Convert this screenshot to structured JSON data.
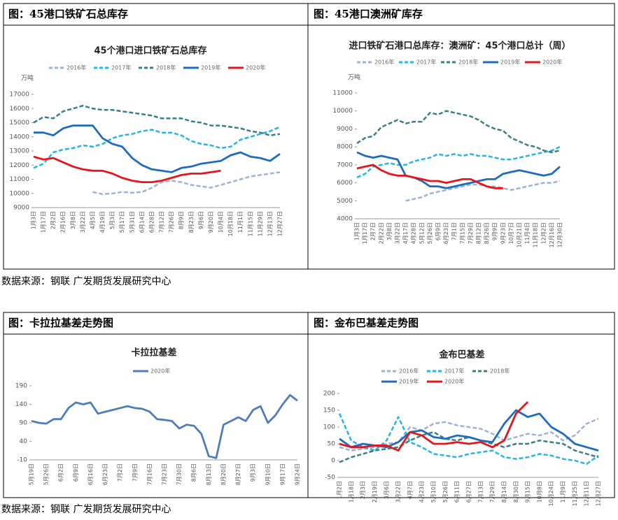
{
  "panels": [
    {
      "heading": "图：45港口铁矿石总库存"
    },
    {
      "heading": "图：45港口澳洲矿库存"
    },
    {
      "heading": "图：卡拉拉基差走势图"
    },
    {
      "heading": "图：金布巴基差走势图"
    }
  ],
  "sources": [
    "数据来源：钢联 广发期货发展研究中心",
    "数据来源：钢联 广发期货发展研究中心"
  ],
  "chart_data": [
    {
      "type": "line",
      "title": "45个港口进口铁矿石总库存",
      "y_label": "万吨",
      "grid": false,
      "categories": [
        "1月3日",
        "1月17日",
        "2月2日",
        "2月16日",
        "3月8日",
        "3月22日",
        "4月5日",
        "4月19日",
        "5月3日",
        "5月17日",
        "5月31日",
        "6月14日",
        "6月28日",
        "7月12日",
        "7月26日",
        "8月9日",
        "8月23日",
        "9月6日",
        "9月20日",
        "10月4日",
        "10月18日",
        "11月1日",
        "11月15日",
        "11月29日",
        "12月13日",
        "12月27日"
      ],
      "ylim": [
        9000,
        17000
      ],
      "yticks": [
        9000,
        10000,
        11000,
        12000,
        13000,
        14000,
        15000,
        16000,
        17000
      ],
      "series": [
        {
          "name": "2016年",
          "color": "#9db3d6",
          "dashed": true,
          "values": [
            null,
            null,
            null,
            null,
            null,
            null,
            10100,
            9950,
            10000,
            10100,
            10050,
            10100,
            10400,
            10800,
            10900,
            10800,
            10600,
            10500,
            10400,
            10600,
            10800,
            11000,
            11200,
            11300,
            11400,
            11500
          ]
        },
        {
          "name": "2017年",
          "color": "#27b4e6",
          "dashed": true,
          "values": [
            11800,
            12100,
            12900,
            13100,
            13200,
            13400,
            13300,
            13500,
            13900,
            14100,
            14200,
            14400,
            14500,
            14300,
            14300,
            14100,
            13700,
            13500,
            13400,
            13200,
            13300,
            13800,
            14000,
            14200,
            14400,
            14700
          ]
        },
        {
          "name": "2018年",
          "color": "#3b7f86",
          "dashed": true,
          "values": [
            15000,
            15400,
            15300,
            15800,
            16000,
            16200,
            16000,
            15900,
            15900,
            15800,
            15700,
            15600,
            15500,
            15300,
            15300,
            15300,
            15100,
            15000,
            14800,
            14800,
            14700,
            14600,
            14400,
            14300,
            14100,
            14200
          ]
        },
        {
          "name": "2019年",
          "color": "#1f6cbf",
          "dashed": false,
          "values": [
            14300,
            14300,
            14100,
            14600,
            14800,
            14800,
            14800,
            13900,
            13500,
            13300,
            12500,
            12000,
            11700,
            11600,
            11500,
            11800,
            11900,
            12100,
            12200,
            12300,
            12700,
            12900,
            12600,
            12500,
            12300,
            12800
          ]
        },
        {
          "name": "2020年",
          "color": "#e8141c",
          "dashed": false,
          "values": [
            12600,
            12400,
            12500,
            12200,
            11900,
            11700,
            11600,
            11600,
            11400,
            11100,
            10900,
            10800,
            10800,
            10900,
            11100,
            11300,
            11400,
            11400,
            11500,
            11600,
            null,
            null,
            null,
            null,
            null,
            null
          ]
        }
      ]
    },
    {
      "type": "line",
      "title": "进口铁矿石港口总库存：澳洲矿：45个港口总计（周）",
      "y_label": "万吨",
      "grid": false,
      "categories": [
        "1月3日",
        "1月17日",
        "2月7日",
        "2月22日",
        "3月8日",
        "3月22日",
        "4月17日",
        "4月28日",
        "5月12日",
        "5月26日",
        "6月9日",
        "6月23日",
        "7月1日",
        "7月15日",
        "7月29日",
        "8月12日",
        "8月26日",
        "9月9日",
        "9月23日",
        "10月7日",
        "10月21日",
        "11月4日",
        "11月18日",
        "12月2日",
        "12月16日",
        "12月30日"
      ],
      "ylim": [
        4000,
        11000
      ],
      "yticks": [
        4000,
        5000,
        6000,
        7000,
        8000,
        9000,
        10000,
        11000
      ],
      "series": [
        {
          "name": "2016年",
          "color": "#9db3d6",
          "dashed": true,
          "values": [
            null,
            null,
            null,
            null,
            null,
            null,
            5000,
            5100,
            5200,
            5400,
            5500,
            5600,
            5700,
            5800,
            5900,
            5900,
            5800,
            5800,
            5700,
            5600,
            5700,
            5800,
            5900,
            6000,
            6000,
            6100
          ]
        },
        {
          "name": "2017年",
          "color": "#27b4e6",
          "dashed": true,
          "values": [
            6300,
            6500,
            6900,
            7000,
            7100,
            7000,
            7000,
            7200,
            7300,
            7400,
            7600,
            7500,
            7600,
            7500,
            7600,
            7500,
            7500,
            7400,
            7300,
            7300,
            7400,
            7500,
            7600,
            7700,
            7800,
            8000
          ]
        },
        {
          "name": "2018年",
          "color": "#3b7f86",
          "dashed": true,
          "values": [
            8200,
            8500,
            8600,
            9100,
            9300,
            9500,
            9300,
            9400,
            9400,
            9900,
            9800,
            10000,
            9900,
            9800,
            9700,
            9500,
            9200,
            9000,
            8900,
            8500,
            8300,
            8100,
            8000,
            7800,
            7700,
            7800
          ]
        },
        {
          "name": "2019年",
          "color": "#1f6cbf",
          "dashed": false,
          "values": [
            7700,
            7500,
            7400,
            7500,
            7400,
            7300,
            6400,
            6300,
            6100,
            5800,
            5800,
            5700,
            5800,
            5900,
            6000,
            6100,
            6200,
            6200,
            6500,
            6600,
            6700,
            6600,
            6500,
            6400,
            6500,
            6900
          ]
        },
        {
          "name": "2020年",
          "color": "#e8141c",
          "dashed": false,
          "values": [
            6800,
            6900,
            7000,
            6700,
            6500,
            6400,
            6400,
            6300,
            6200,
            6100,
            6100,
            6000,
            6100,
            6200,
            6200,
            6000,
            5800,
            5700,
            5700,
            null,
            null,
            null,
            null,
            null,
            null,
            null
          ]
        }
      ]
    },
    {
      "type": "line",
      "title": "卡拉拉基差",
      "grid": false,
      "categories": [
        "5月19日",
        null,
        "5月26日",
        null,
        "6月2日",
        null,
        "6月9日",
        null,
        "6月16日",
        null,
        "6月23日",
        null,
        "7月2日",
        null,
        "7月9日",
        null,
        "7月16日",
        null,
        "7月23日",
        null,
        "7月30日",
        null,
        "8月6日",
        null,
        "8月13日",
        null,
        "8月20日",
        null,
        "8月27日",
        null,
        "9月3日",
        null,
        "9月10日",
        null,
        "9月17日",
        null,
        "9月24日"
      ],
      "ylim": [
        -10,
        190
      ],
      "yticks": [
        -10,
        40,
        90,
        140,
        190
      ],
      "series": [
        {
          "name": "2020年",
          "color": "#4f7cba",
          "dashed": false,
          "values": [
            95,
            90,
            88,
            100,
            100,
            130,
            145,
            140,
            145,
            115,
            120,
            125,
            130,
            135,
            130,
            128,
            120,
            100,
            98,
            95,
            75,
            85,
            82,
            60,
            0,
            -5,
            85,
            95,
            105,
            95,
            125,
            135,
            90,
            110,
            140,
            165,
            150
          ]
        }
      ]
    },
    {
      "type": "line",
      "title": "金布巴基差",
      "grid": false,
      "categories": [
        "1月2日",
        "1月18日",
        "2月3日",
        "2月19日",
        "3月6日",
        "3月22日",
        "4月7日",
        "4月23日",
        "5月10日",
        "5月26日",
        "6月11日",
        "6月27日",
        "7月13日",
        "7月29日",
        "8月14日",
        "8月30日",
        "9月15日",
        "10月8日",
        "10月24日",
        "11月9日",
        "11月25日",
        "12月11日",
        "12月27日"
      ],
      "ylim": [
        -50,
        200
      ],
      "yticks": [
        -50,
        0,
        50,
        100,
        150,
        200
      ],
      "series": [
        {
          "name": "2016年",
          "color": "#9db3d6",
          "dashed": true,
          "values": [
            40,
            30,
            35,
            40,
            50,
            55,
            100,
            90,
            110,
            115,
            105,
            100,
            95,
            80,
            60,
            70,
            80,
            75,
            85,
            60,
            75,
            110,
            125
          ]
        },
        {
          "name": "2017年",
          "color": "#27b4e6",
          "dashed": true,
          "values": [
            140,
            60,
            40,
            30,
            60,
            130,
            55,
            40,
            20,
            15,
            10,
            20,
            25,
            30,
            10,
            5,
            10,
            20,
            15,
            5,
            0,
            -10,
            15
          ]
        },
        {
          "name": "2018年",
          "color": "#3b7f86",
          "dashed": true,
          "values": [
            -5,
            10,
            20,
            30,
            35,
            40,
            60,
            75,
            85,
            65,
            60,
            70,
            60,
            50,
            40,
            50,
            50,
            60,
            55,
            50,
            30,
            20,
            10
          ]
        },
        {
          "name": "2019年",
          "color": "#1f6cbf",
          "dashed": false,
          "values": [
            65,
            40,
            50,
            45,
            40,
            55,
            85,
            90,
            70,
            65,
            75,
            70,
            60,
            55,
            110,
            150,
            130,
            140,
            100,
            80,
            50,
            40,
            30
          ]
        },
        {
          "name": "2020年",
          "color": "#e8141c",
          "dashed": false,
          "values": [
            50,
            40,
            40,
            45,
            45,
            30,
            85,
            75,
            50,
            50,
            55,
            50,
            55,
            40,
            60,
            140,
            175,
            null,
            null,
            null,
            null,
            null,
            null
          ]
        }
      ]
    }
  ]
}
